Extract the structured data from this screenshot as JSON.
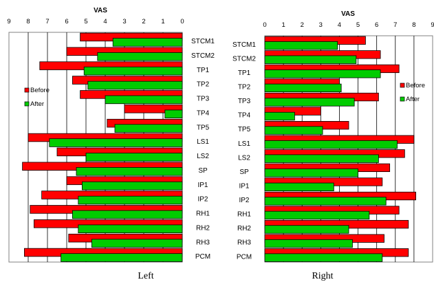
{
  "chart_data": [
    {
      "type": "bar",
      "orientation": "horizontal",
      "caption": "Left",
      "xlabel": "VAS",
      "xlim": [
        9,
        0
      ],
      "x_ticks": [
        "9",
        "8",
        "7",
        "6",
        "5",
        "4",
        "3",
        "2",
        "1",
        "0"
      ],
      "categories": [
        "STCM1",
        "STCM2",
        "TP1",
        "TP2",
        "TP3",
        "TP4",
        "TP5",
        "LS1",
        "LS2",
        "SP",
        "IP1",
        "IP2",
        "RH1",
        "RH2",
        "RH3",
        "PCM"
      ],
      "series": [
        {
          "name": "Before",
          "color": "#ff0000",
          "values": [
            5.3,
            6.0,
            7.4,
            5.7,
            5.3,
            3.0,
            3.9,
            8.0,
            6.5,
            8.3,
            6.0,
            7.3,
            7.9,
            7.7,
            5.9,
            8.2
          ]
        },
        {
          "name": "After",
          "color": "#00cc00",
          "values": [
            3.6,
            4.4,
            5.1,
            4.9,
            4.0,
            0.9,
            3.5,
            6.9,
            5.0,
            5.5,
            5.2,
            5.4,
            5.7,
            5.4,
            4.7,
            6.3
          ]
        }
      ],
      "legend": {
        "position": "left",
        "entries": [
          "Before",
          "After"
        ]
      },
      "grid": {
        "vertical": true,
        "horizontal": false
      }
    },
    {
      "type": "bar",
      "orientation": "horizontal",
      "caption": "Right",
      "xlabel": "VAS",
      "xlim": [
        0,
        9
      ],
      "x_ticks": [
        "0",
        "1",
        "2",
        "3",
        "4",
        "5",
        "6",
        "7",
        "8",
        "9"
      ],
      "categories": [
        "STCM1",
        "STCM2",
        "TP1",
        "TP2",
        "TP3",
        "TP4",
        "TP5",
        "LS1",
        "LS2",
        "SP",
        "IP1",
        "IP2",
        "RH1",
        "RH2",
        "RH3",
        "PCM"
      ],
      "series": [
        {
          "name": "Before",
          "color": "#ff0000",
          "values": [
            5.4,
            6.2,
            7.2,
            4.0,
            6.1,
            3.0,
            4.5,
            8.0,
            7.5,
            6.7,
            6.3,
            8.1,
            7.2,
            7.7,
            6.4,
            7.7
          ]
        },
        {
          "name": "After",
          "color": "#00cc00",
          "values": [
            3.9,
            4.9,
            6.2,
            4.1,
            4.8,
            1.6,
            3.1,
            7.1,
            6.1,
            5.0,
            3.7,
            6.5,
            5.6,
            4.5,
            4.7,
            6.3
          ]
        }
      ],
      "legend": {
        "position": "right",
        "entries": [
          "Before",
          "After"
        ]
      },
      "grid": {
        "vertical": true,
        "horizontal": false
      }
    }
  ]
}
